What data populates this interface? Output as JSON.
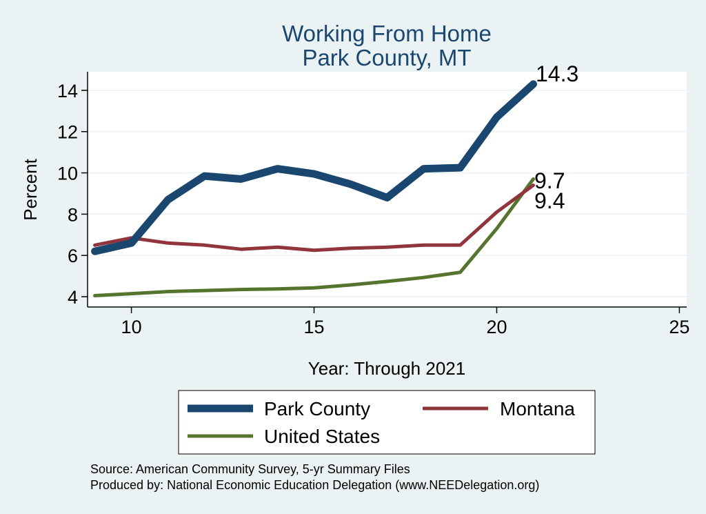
{
  "chart_data": {
    "type": "line",
    "title": [
      "Working From Home",
      "Park County, MT"
    ],
    "xlabel": "Year: Through 2021",
    "ylabel": "Percent",
    "xlim": [
      8.8,
      25.2
    ],
    "ylim": [
      3.5,
      14.9
    ],
    "xticks": [
      10,
      15,
      20,
      25
    ],
    "yticks": [
      4,
      6,
      8,
      10,
      12,
      14
    ],
    "grid": true,
    "legend_position": "bottom",
    "series": [
      {
        "name": "Park County",
        "color": "#1a476f",
        "x": [
          9,
          10,
          11,
          12,
          13,
          14,
          15,
          16,
          17,
          18,
          19,
          20,
          21
        ],
        "values": [
          6.2,
          6.6,
          8.7,
          9.85,
          9.7,
          10.2,
          9.95,
          9.45,
          8.8,
          10.2,
          10.25,
          12.7,
          14.3
        ],
        "end_label": "14.3"
      },
      {
        "name": "Montana",
        "color": "#90353b",
        "x": [
          9,
          10,
          11,
          12,
          13,
          14,
          15,
          16,
          17,
          18,
          19,
          20,
          21
        ],
        "values": [
          6.5,
          6.85,
          6.6,
          6.5,
          6.3,
          6.4,
          6.25,
          6.35,
          6.4,
          6.5,
          6.5,
          8.1,
          9.4
        ],
        "end_label": "9.4"
      },
      {
        "name": "United States",
        "color": "#55752f",
        "x": [
          9,
          10,
          11,
          12,
          13,
          14,
          15,
          16,
          17,
          18,
          19,
          20,
          21
        ],
        "values": [
          4.05,
          4.15,
          4.25,
          4.3,
          4.35,
          4.38,
          4.43,
          4.57,
          4.74,
          4.93,
          5.18,
          7.3,
          9.7
        ],
        "end_label": "9.7"
      }
    ],
    "notes": [
      "Source: American Community Survey, 5-yr Summary Files",
      "Produced by: National Economic Education Delegation (www.NEEDelegation.org)"
    ]
  }
}
